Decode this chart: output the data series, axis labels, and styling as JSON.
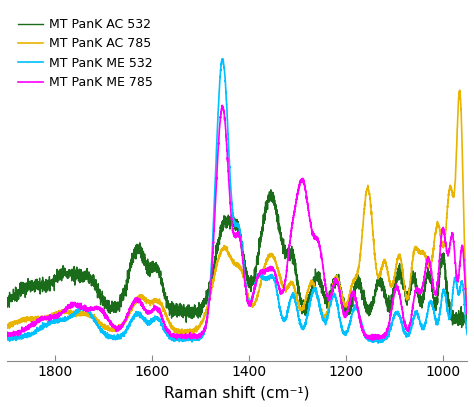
{
  "title": "",
  "xlabel": "Raman shift (cm⁻¹)",
  "ylabel": "",
  "xlim": [
    1900,
    950
  ],
  "legend_labels": [
    "MT PanK AC 532",
    "MT PanK AC 785",
    "MT PanK ME 532",
    "MT PanK ME 785"
  ],
  "colors": [
    "#1a6b1a",
    "#e8b400",
    "#00c0ff",
    "#ff00ff"
  ],
  "linewidths": [
    1.0,
    1.2,
    1.2,
    1.2
  ],
  "xticks": [
    1800,
    1600,
    1400,
    1200,
    1000
  ],
  "background": "#ffffff"
}
